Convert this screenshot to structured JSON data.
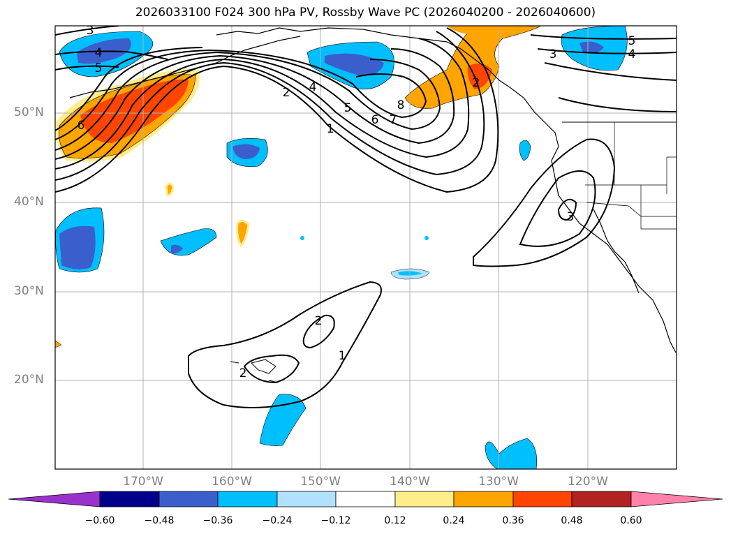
{
  "title": "2026033100 F024 300 hPa PV, Rossby Wave PC (2026040200 - 2026040600)",
  "lat_labels": [
    "50°N",
    "40°N",
    "30°N",
    "20°N"
  ],
  "lon_labels": [
    "170°W",
    "160°W",
    "150°W",
    "140°W",
    "130°W",
    "120°W"
  ],
  "colorbar": {
    "ticks": [
      "−0.60",
      "−0.48",
      "−0.36",
      "−0.24",
      "−0.12",
      "0.12",
      "0.24",
      "0.36",
      "0.48",
      "0.60"
    ],
    "colors": [
      "#9932cc",
      "#00008b",
      "#3a5fcd",
      "#00bfff",
      "#b0e2ff",
      "#ffffff",
      "#ffec8b",
      "#ffa500",
      "#ff4500",
      "#b22222",
      "#ff82ab"
    ]
  },
  "contour_labels": [
    "3",
    "4",
    "5",
    "6",
    "2",
    "4",
    "5",
    "6",
    "7",
    "8",
    "1",
    "5",
    "4",
    "3",
    "2",
    "3",
    "1",
    "2",
    "2"
  ],
  "colors": {
    "axis": "#000000",
    "grid": "#b0b0b0",
    "label": "#808080"
  }
}
